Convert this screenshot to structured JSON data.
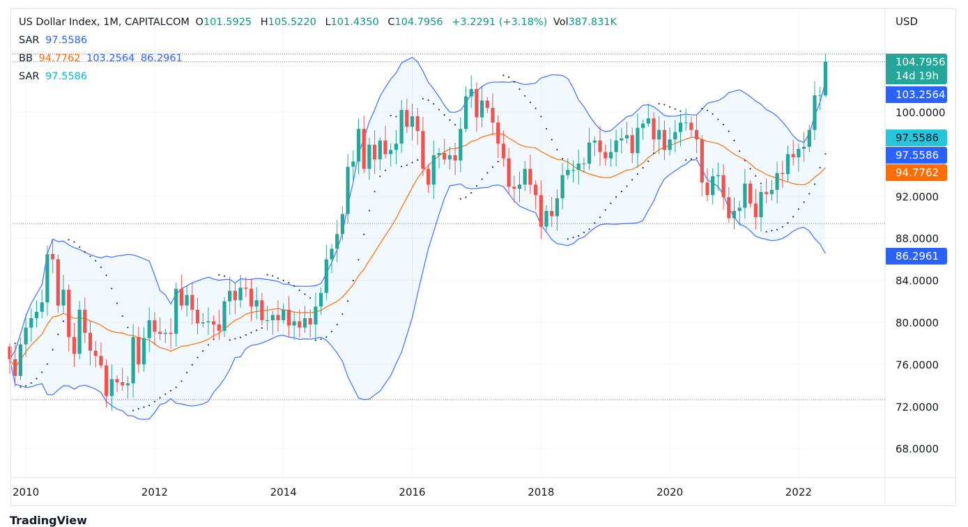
{
  "legend": {
    "symbol": "US Dollar Index, 1M, CAPITALCOM",
    "o_label": "O",
    "o": "101.5925",
    "h_label": "H",
    "h": "105.5220",
    "l_label": "L",
    "l": "101.4350",
    "c_label": "C",
    "c": "104.7956",
    "change": "+3.2291 (+3.18%)",
    "vol_label": "Vol",
    "vol": "387.831K",
    "sar1_label": "SAR",
    "sar1": "97.5586",
    "bb_label": "BB",
    "bb_basis": "94.7762",
    "bb_upper": "103.2564",
    "bb_lower": "86.2961",
    "sar2_label": "SAR",
    "sar2": "97.5586"
  },
  "price_axis": {
    "currency": "USD"
  },
  "badges": [
    {
      "value": "104.7956",
      "sub": "14d 19h",
      "color": "#26a69a",
      "price": 104.7956
    },
    {
      "value": "103.2564",
      "color": "#2962ff",
      "price": 103.2564
    },
    {
      "value": "97.5586",
      "color": "#26c6da",
      "text_color": "#131722",
      "price": 97.5586
    },
    {
      "value": "97.5586",
      "color": "#2962ff",
      "price": 97.5586
    },
    {
      "value": "94.7762",
      "color": "#ff6d00",
      "price": 94.7762
    },
    {
      "value": "86.2961",
      "color": "#2962ff",
      "price": 86.2961
    }
  ],
  "brand": "TradingView",
  "chart_data": {
    "type": "candlestick",
    "title": "US Dollar Index, 1M, CAPITALCOM",
    "start": "2009-10",
    "interval": "1M",
    "ylim": [
      64.6,
      109.3
    ],
    "y_ticks": [
      "68.0000",
      "72.0000",
      "76.0000",
      "80.0000",
      "84.0000",
      "88.0000",
      "92.0000",
      "100.0000"
    ],
    "y_tick_values": [
      68,
      72,
      76,
      80,
      84,
      88,
      92,
      100
    ],
    "x_ticks": [
      "2010",
      "2012",
      "2014",
      "2016",
      "2018",
      "2020",
      "2022"
    ],
    "horizontal_lines": [
      105.522,
      104.7956,
      89.4,
      72.65
    ],
    "close": [
      76.5,
      74.9,
      77.9,
      79.5,
      80.4,
      81.0,
      81.9,
      86.5,
      86.0,
      81.6,
      83.1,
      78.6,
      77.0,
      81.2,
      79.0,
      77.3,
      76.8,
      75.9,
      73.0,
      74.6,
      74.3,
      74.0,
      74.2,
      78.6,
      76.0,
      78.5,
      80.2,
      79.1,
      78.9,
      79.0,
      78.9,
      83.2,
      81.6,
      82.6,
      81.2,
      79.9,
      80.0,
      80.1,
      79.8,
      79.2,
      82.0,
      83.0,
      82.1,
      83.3,
      83.2,
      81.5,
      82.1,
      80.2,
      80.2,
      80.7,
      80.2,
      81.2,
      79.7,
      80.1,
      79.5,
      80.4,
      79.8,
      81.5,
      82.8,
      86.0,
      87.0,
      88.4,
      90.3,
      94.8,
      95.3,
      98.4,
      94.6,
      96.9,
      95.5,
      97.3,
      96.0,
      96.4,
      97.0,
      100.2,
      98.6,
      99.6,
      98.2,
      94.6,
      93.1,
      95.9,
      96.1,
      95.5,
      95.9,
      95.4,
      98.4,
      101.5,
      102.2,
      99.5,
      101.1,
      100.4,
      99.0,
      97.0,
      95.6,
      92.9,
      92.7,
      93.1,
      94.6,
      93.1,
      92.1,
      89.1,
      90.6,
      90.1,
      91.8,
      94.0,
      94.5,
      94.5,
      95.1,
      95.1,
      97.1,
      97.3,
      96.2,
      95.6,
      96.2,
      97.3,
      97.5,
      97.8,
      96.1,
      98.5,
      98.9,
      99.4,
      97.4,
      98.3,
      96.4,
      97.4,
      98.1,
      99.0,
      99.0,
      98.3,
      97.4,
      93.3,
      92.1,
      93.9,
      94.0,
      91.9,
      89.9,
      90.6,
      90.9,
      93.2,
      91.3,
      90.0,
      92.4,
      92.2,
      92.6,
      94.2,
      94.1,
      96.0,
      95.7,
      96.5,
      96.7,
      98.3,
      101.5925,
      101.6,
      104.7956
    ],
    "last_candle": {
      "open": 101.5925,
      "high": 105.522,
      "low": 101.435,
      "close": 104.7956
    },
    "indicators": [
      {
        "name": "BB",
        "length": 20,
        "mult": 2,
        "basis_color": "#ff6d00",
        "band_color": "#2962ff"
      },
      {
        "name": "SAR",
        "color": "#1e2a5a"
      }
    ],
    "colors": {
      "up": "#26a69a",
      "down": "#ef5350"
    }
  }
}
